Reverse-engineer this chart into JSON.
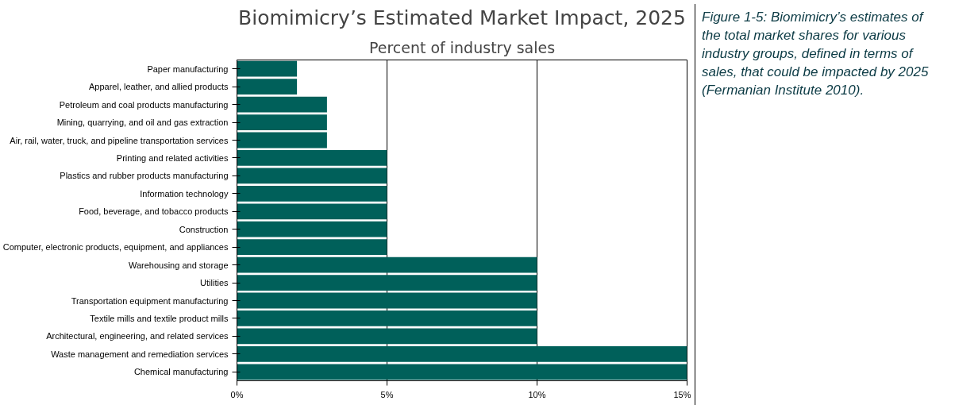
{
  "chart_data": {
    "type": "bar",
    "orientation": "horizontal",
    "title": "Biomimicry’s Estimated Market Impact, 2025",
    "subtitle": "Percent of industry sales",
    "categories": [
      "Paper manufacturing",
      "Apparel, leather, and allied products",
      "Petroleum and coal products manufacturing",
      "Mining, quarrying, and oil and gas extraction",
      "Air, rail, water, truck, and pipeline transportation services",
      "Printing and related activities",
      "Plastics and rubber products manufacturing",
      "Information technology",
      "Food, beverage, and tobacco products",
      "Construction",
      "Computer, electronic products, equipment, and appliances",
      "Warehousing and storage",
      "Utilities",
      "Transportation equipment manufacturing",
      "Textile mills and textile product mills",
      "Architectural, engineering, and related services",
      "Waste management and remediation services",
      "Chemical manufacturing"
    ],
    "values": [
      2,
      2,
      3,
      3,
      3,
      5,
      5,
      5,
      5,
      5,
      5,
      10,
      10,
      10,
      10,
      10,
      15,
      15
    ],
    "color": "#00605a",
    "xlim": [
      0,
      15
    ],
    "xticks": [
      {
        "value": 0,
        "label": "0%"
      },
      {
        "value": 5,
        "label": "5%"
      },
      {
        "value": 10,
        "label": "10%"
      },
      {
        "value": 15,
        "label": "15%"
      }
    ],
    "grid": "x",
    "annotations": [
      "Figure 1-5: Biomimicry’s estimates of the total market shares for various industry groups, defined in terms of sales, that could be impacted by 2025 (Fermanian Institute 2010)."
    ]
  }
}
